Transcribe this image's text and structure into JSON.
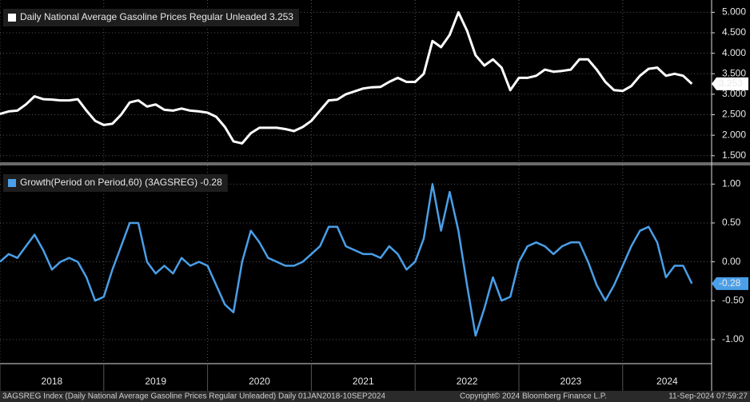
{
  "chart_data": [
    {
      "type": "line",
      "x": [
        2018,
        2018.083,
        2018.167,
        2018.25,
        2018.333,
        2018.417,
        2018.5,
        2018.583,
        2018.667,
        2018.75,
        2018.833,
        2018.917,
        2019,
        2019.083,
        2019.167,
        2019.25,
        2019.333,
        2019.417,
        2019.5,
        2019.583,
        2019.667,
        2019.75,
        2019.833,
        2019.917,
        2020,
        2020.083,
        2020.167,
        2020.25,
        2020.333,
        2020.417,
        2020.5,
        2020.583,
        2020.667,
        2020.75,
        2020.833,
        2020.917,
        2021,
        2021.083,
        2021.167,
        2021.25,
        2021.333,
        2021.417,
        2021.5,
        2021.583,
        2021.667,
        2021.75,
        2021.833,
        2021.917,
        2022,
        2022.083,
        2022.167,
        2022.25,
        2022.333,
        2022.417,
        2022.5,
        2022.583,
        2022.667,
        2022.75,
        2022.833,
        2022.917,
        2023,
        2023.083,
        2023.167,
        2023.25,
        2023.333,
        2023.417,
        2023.5,
        2023.583,
        2023.667,
        2023.75,
        2023.833,
        2023.917,
        2024,
        2024.083,
        2024.167,
        2024.25,
        2024.333,
        2024.417,
        2024.5,
        2024.583,
        2024.667
      ],
      "series": [
        {
          "name": "Daily National Average Gasoline Prices Regular Unleaded 3.253",
          "color": "#ffffff",
          "values": [
            2.52,
            2.58,
            2.6,
            2.75,
            2.95,
            2.88,
            2.87,
            2.85,
            2.85,
            2.88,
            2.6,
            2.35,
            2.25,
            2.28,
            2.5,
            2.8,
            2.85,
            2.7,
            2.75,
            2.62,
            2.6,
            2.65,
            2.6,
            2.58,
            2.55,
            2.45,
            2.2,
            1.85,
            1.8,
            2.05,
            2.18,
            2.18,
            2.18,
            2.15,
            2.1,
            2.2,
            2.35,
            2.6,
            2.85,
            2.87,
            3.0,
            3.07,
            3.14,
            3.17,
            3.18,
            3.3,
            3.4,
            3.3,
            3.3,
            3.5,
            4.3,
            4.15,
            4.45,
            5.0,
            4.55,
            3.95,
            3.7,
            3.85,
            3.65,
            3.1,
            3.4,
            3.4,
            3.45,
            3.6,
            3.55,
            3.57,
            3.6,
            3.85,
            3.85,
            3.6,
            3.3,
            3.1,
            3.08,
            3.2,
            3.45,
            3.62,
            3.65,
            3.45,
            3.5,
            3.45,
            3.253
          ]
        }
      ],
      "xlim": [
        2018,
        2024.857
      ],
      "xticks": [
        2018,
        2019,
        2020,
        2021,
        2022,
        2023,
        2024
      ],
      "ylim": [
        1.34,
        5.3
      ],
      "yticks": [
        {
          "value": 1.5,
          "label": "1.500"
        },
        {
          "value": 2,
          "label": "2.000"
        },
        {
          "value": 2.5,
          "label": "2.500"
        },
        {
          "value": 3,
          "label": "3.000"
        },
        {
          "value": 3.5,
          "label": "3.500"
        },
        {
          "value": 4,
          "label": "4.000"
        },
        {
          "value": 4.5,
          "label": "4.500"
        },
        {
          "value": 5,
          "label": "5.000"
        }
      ],
      "grid": true
    },
    {
      "type": "line",
      "x": [
        2018,
        2018.083,
        2018.167,
        2018.25,
        2018.333,
        2018.417,
        2018.5,
        2018.583,
        2018.667,
        2018.75,
        2018.833,
        2018.917,
        2019,
        2019.083,
        2019.167,
        2019.25,
        2019.333,
        2019.417,
        2019.5,
        2019.583,
        2019.667,
        2019.75,
        2019.833,
        2019.917,
        2020,
        2020.083,
        2020.167,
        2020.25,
        2020.333,
        2020.417,
        2020.5,
        2020.583,
        2020.667,
        2020.75,
        2020.833,
        2020.917,
        2021,
        2021.083,
        2021.167,
        2021.25,
        2021.333,
        2021.417,
        2021.5,
        2021.583,
        2021.667,
        2021.75,
        2021.833,
        2021.917,
        2022,
        2022.083,
        2022.167,
        2022.25,
        2022.333,
        2022.417,
        2022.5,
        2022.583,
        2022.667,
        2022.75,
        2022.833,
        2022.917,
        2023,
        2023.083,
        2023.167,
        2023.25,
        2023.333,
        2023.417,
        2023.5,
        2023.583,
        2023.667,
        2023.75,
        2023.833,
        2023.917,
        2024,
        2024.083,
        2024.167,
        2024.25,
        2024.333,
        2024.417,
        2024.5,
        2024.583,
        2024.667
      ],
      "series": [
        {
          "name": "Growth(Period on Period,60) (3AGSREG) -0.28",
          "color": "#4a9fe8",
          "values": [
            0.0,
            0.1,
            0.05,
            0.2,
            0.35,
            0.15,
            -0.1,
            0.0,
            0.05,
            0.0,
            -0.2,
            -0.5,
            -0.45,
            -0.1,
            0.2,
            0.5,
            0.5,
            0.0,
            -0.15,
            -0.05,
            -0.15,
            0.05,
            -0.05,
            0.0,
            -0.05,
            -0.3,
            -0.55,
            -0.65,
            0.0,
            0.4,
            0.25,
            0.05,
            0.0,
            -0.05,
            -0.05,
            0.0,
            0.1,
            0.2,
            0.45,
            0.45,
            0.2,
            0.15,
            0.1,
            0.1,
            0.05,
            0.2,
            0.1,
            -0.1,
            0.0,
            0.3,
            1.0,
            0.4,
            0.9,
            0.4,
            -0.3,
            -0.95,
            -0.6,
            -0.2,
            -0.5,
            -0.45,
            0.0,
            0.2,
            0.25,
            0.2,
            0.1,
            0.2,
            0.25,
            0.25,
            0.0,
            -0.3,
            -0.5,
            -0.3,
            -0.05,
            0.2,
            0.4,
            0.45,
            0.25,
            -0.2,
            -0.05,
            -0.05,
            -0.28
          ]
        }
      ],
      "xlim": [
        2018,
        2024.857
      ],
      "xticks": [
        2018,
        2019,
        2020,
        2021,
        2022,
        2023,
        2024
      ],
      "ylim": [
        -1.31,
        1.24
      ],
      "yticks": [
        {
          "value": -1,
          "label": "-1.00"
        },
        {
          "value": -0.5,
          "label": "-0.50"
        },
        {
          "value": 0,
          "label": "0.00"
        },
        {
          "value": 0.5,
          "label": "0.50"
        },
        {
          "value": 1,
          "label": "1.00"
        }
      ],
      "grid": true
    }
  ],
  "footer": {
    "source": "3AGSREG Index (Daily National Average Gasoline Prices Regular Unleaded)  Daily 01JAN2018-10SEP2024",
    "copyright": "Copyright© 2024 Bloomberg Finance L.P.",
    "timestamp": "11-Sep-2024 07:59:27"
  }
}
